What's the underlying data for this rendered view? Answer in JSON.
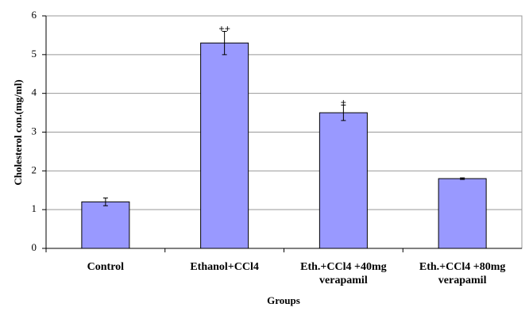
{
  "chart_data": {
    "type": "bar",
    "x_label": "Groups",
    "y_label": "Cholesterol con.(mg/ml)",
    "categories": [
      "Control",
      "Ethanol+CCl4",
      "Eth.+CCl4 +40mg verapamil",
      "Eth.+CCl4 +80mg verapamil"
    ],
    "values": [
      1.2,
      5.3,
      3.5,
      1.8
    ],
    "errors": [
      0.1,
      0.3,
      0.2,
      0.02
    ],
    "annotations": [
      null,
      "++",
      "+",
      null
    ],
    "color": "#9999ff",
    "ylim": [
      0,
      6
    ],
    "yticks": [
      0,
      1,
      2,
      3,
      4,
      5,
      6
    ],
    "grid": true
  }
}
